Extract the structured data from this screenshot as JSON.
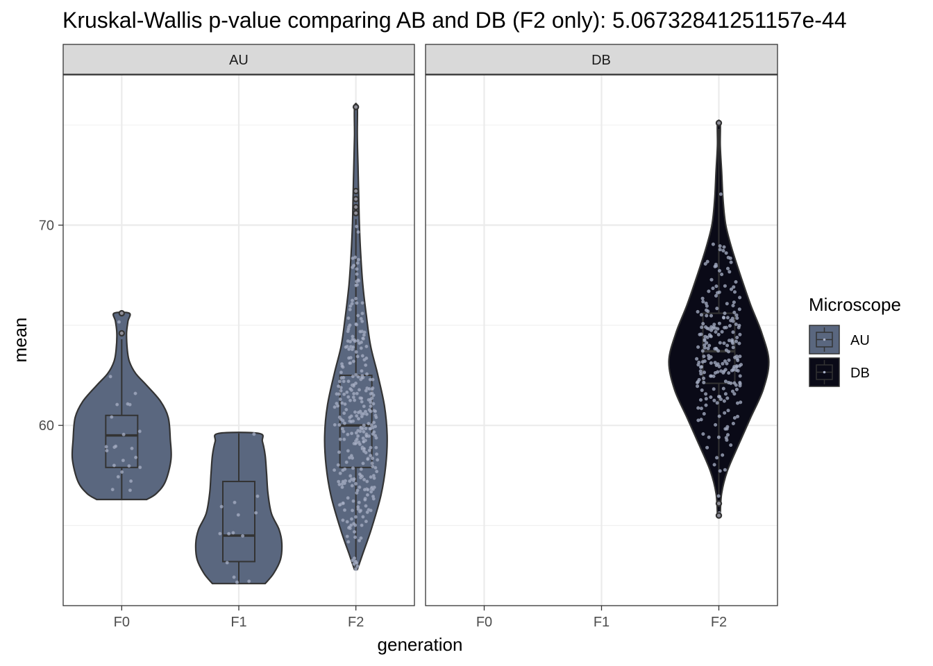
{
  "chart_data": {
    "type": "violin",
    "title": "Kruskal-Wallis p-value comparing AB and DB (F2 only): 5.06732841251157e-44",
    "xlabel": "generation",
    "ylabel": "mean",
    "ylim": [
      51,
      77.5
    ],
    "y_ticks": [
      60,
      70
    ],
    "categories": [
      "F0",
      "F1",
      "F2"
    ],
    "facets": [
      {
        "label": "AU",
        "groups": [
          {
            "category": "F0",
            "min": 56.3,
            "max": 65.6,
            "q1": 57.9,
            "median": 59.5,
            "q3": 60.5,
            "outliers": [
              64.6,
              65.6
            ]
          },
          {
            "category": "F1",
            "min": 52.1,
            "max": 59.6,
            "q1": 53.2,
            "median": 54.5,
            "q3": 57.2,
            "outliers": []
          },
          {
            "category": "F2",
            "min": 52.8,
            "max": 75.9,
            "q1": 57.9,
            "median": 60.0,
            "q3": 62.5,
            "outliers": [
              70.6,
              70.9,
              71.3,
              71.7,
              75.9
            ]
          }
        ]
      },
      {
        "label": "DB",
        "groups": [
          {
            "category": "F2",
            "min": 55.5,
            "max": 75.1,
            "q1": 62.1,
            "median": 63.7,
            "q3": 65.6,
            "outliers": [
              55.5,
              56.1,
              75.1
            ]
          }
        ]
      }
    ],
    "legend": {
      "title": "Microscope",
      "position": "right",
      "items": [
        {
          "label": "AU",
          "color": "#5a677f"
        },
        {
          "label": "DB",
          "color": "#0a0a17"
        }
      ]
    },
    "grid": true
  }
}
